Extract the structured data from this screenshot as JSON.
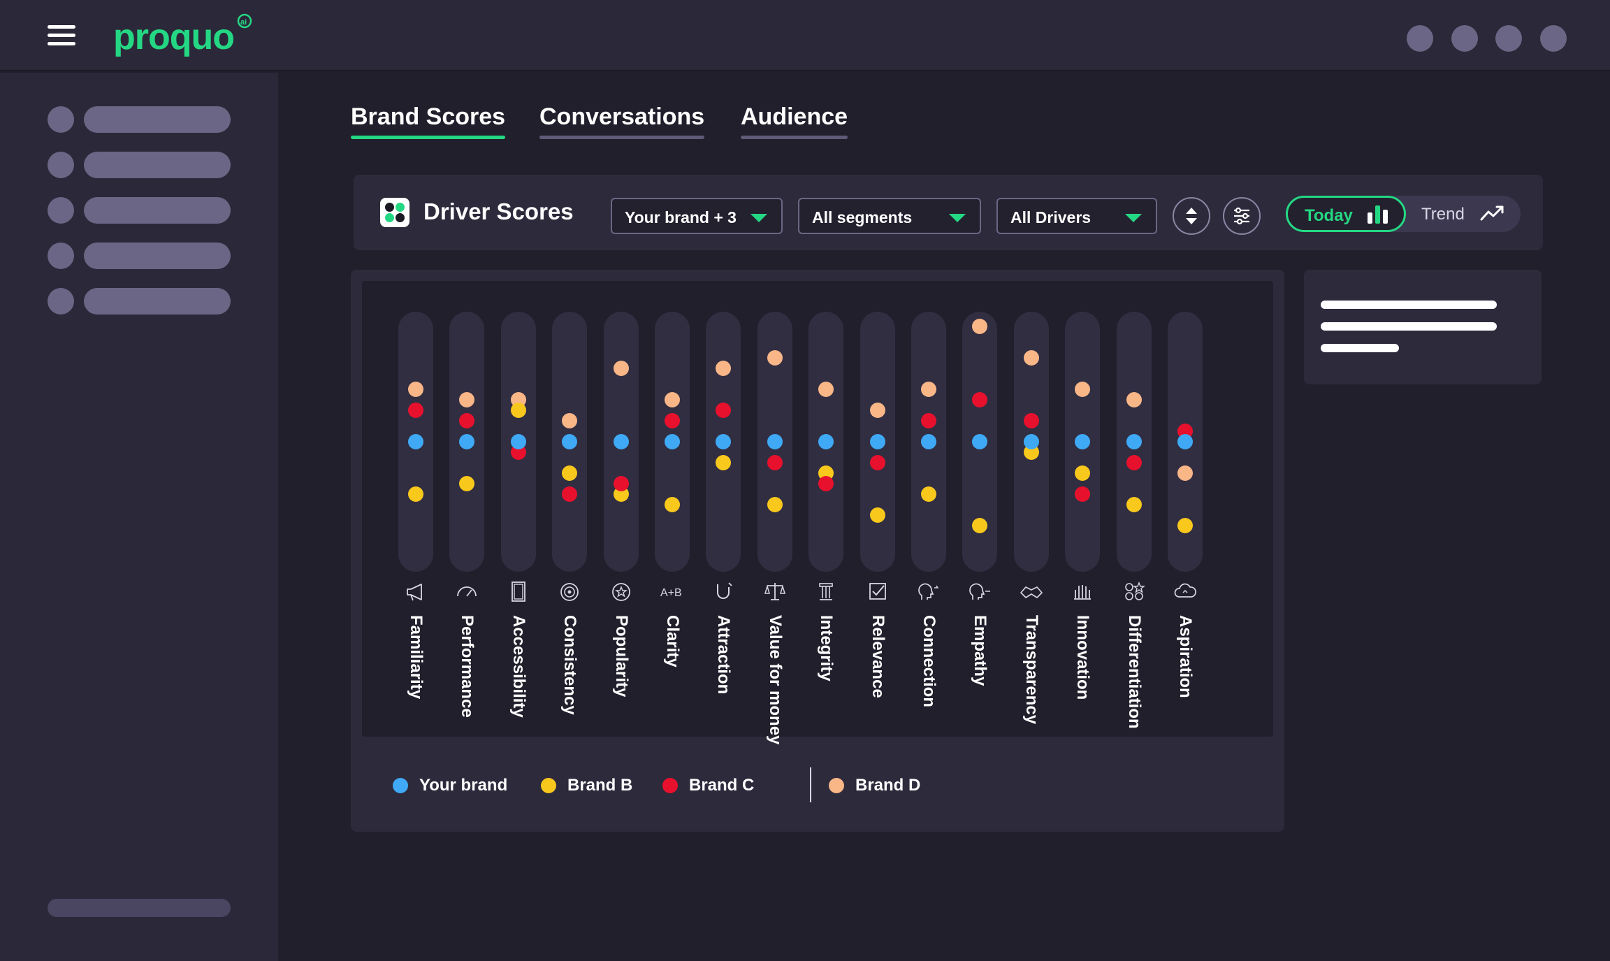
{
  "app": {
    "logo_text": "proquo",
    "logo_badge": "ai"
  },
  "colors": {
    "accent": "#24d883",
    "your_brand": "#3fa9f5",
    "brand_b": "#f8c81c",
    "brand_c": "#e8112d",
    "brand_d": "#f9b687"
  },
  "tabs": [
    {
      "label": "Brand Scores",
      "active": true
    },
    {
      "label": "Conversations",
      "active": false
    },
    {
      "label": "Audience",
      "active": false
    }
  ],
  "driver_header": {
    "title": "Driver Scores",
    "brand_select": "Your brand + 3",
    "segment_select": "All segments",
    "driver_select": "All Drivers",
    "sort_icon": "sort-icon",
    "filter_icon": "sliders-icon",
    "toggle": {
      "today": "Today",
      "trend": "Trend",
      "selected": "Today"
    }
  },
  "legend": [
    {
      "label": "Your brand",
      "key": "your_brand"
    },
    {
      "label": "Brand B",
      "key": "brand_b"
    },
    {
      "label": "Brand C",
      "key": "brand_c"
    },
    {
      "label": "Brand D",
      "key": "brand_d"
    }
  ],
  "chart_data": {
    "type": "scatter",
    "categories": [
      "Familiarity",
      "Performance",
      "Accessibility",
      "Consistency",
      "Popularity",
      "Clarity",
      "Attraction",
      "Value for money",
      "Integrity",
      "Relevance",
      "Connection",
      "Empathy",
      "Transparency",
      "Innovation",
      "Differentiation",
      "Aspiration"
    ],
    "icons": [
      "megaphone-icon",
      "gauge-icon",
      "door-icon",
      "target-icon",
      "star-badge-icon",
      "a-b-icon",
      "magnet-icon",
      "scales-icon",
      "pillar-icon",
      "checkbox-icon",
      "head-arrow-icon",
      "head-heart-icon",
      "handshake-icon",
      "hand-icon",
      "shapes-icon",
      "cloud-icon"
    ],
    "relative_to": "Your brand",
    "series": [
      {
        "name": "Your brand",
        "key": "your_brand",
        "values": [
          0,
          0,
          0,
          0,
          0,
          0,
          0,
          0,
          0,
          0,
          0,
          0,
          0,
          0,
          0,
          0
        ]
      },
      {
        "name": "Brand B",
        "key": "brand_b",
        "values": [
          -5,
          -4,
          3,
          -3,
          -5,
          -6,
          -2,
          -6,
          -3,
          -7,
          -5,
          -8,
          -1,
          -3,
          -6,
          -8
        ]
      },
      {
        "name": "Brand C",
        "key": "brand_c",
        "values": [
          3,
          2,
          -1,
          -5,
          -4,
          2,
          3,
          -2,
          -4,
          -2,
          2,
          4,
          2,
          -5,
          -2,
          1
        ]
      },
      {
        "name": "Brand D",
        "key": "brand_d",
        "values": [
          5,
          4,
          4,
          2,
          7,
          4,
          7,
          8,
          5,
          3,
          5,
          11,
          8,
          5,
          4,
          -3
        ]
      }
    ],
    "ylim": [
      -13,
      13
    ]
  }
}
